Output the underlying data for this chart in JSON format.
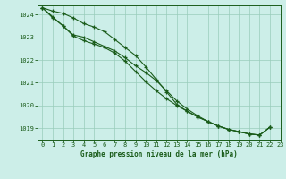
{
  "title": "Graphe pression niveau de la mer (hPa)",
  "background_color": "#cceee8",
  "grid_color": "#99ccbb",
  "line_color": "#1a5c1a",
  "xlim": [
    -0.5,
    23
  ],
  "ylim": [
    1018.5,
    1024.4
  ],
  "yticks": [
    1019,
    1020,
    1021,
    1022,
    1023,
    1024
  ],
  "xticks": [
    0,
    1,
    2,
    3,
    4,
    5,
    6,
    7,
    8,
    9,
    10,
    11,
    12,
    13,
    14,
    15,
    16,
    17,
    18,
    19,
    20,
    21,
    22,
    23
  ],
  "x_hours": [
    0,
    1,
    2,
    3,
    4,
    5,
    6,
    7,
    8,
    9,
    10,
    11,
    12,
    13,
    14,
    15,
    16,
    17,
    18,
    19,
    20,
    21,
    22
  ],
  "series": [
    [
      1024.3,
      1023.9,
      1023.5,
      1023.1,
      1023.0,
      1022.8,
      1022.6,
      1022.4,
      1022.1,
      1021.75,
      1021.45,
      1021.1,
      1020.65,
      1020.2,
      1019.85,
      1019.55,
      1019.3,
      1019.1,
      1018.95,
      1018.85,
      1018.75,
      1018.7,
      1019.05
    ],
    [
      1024.3,
      1023.85,
      1023.5,
      1023.05,
      1022.85,
      1022.7,
      1022.55,
      1022.3,
      1021.95,
      1021.5,
      1021.05,
      1020.65,
      1020.3,
      1020.0,
      1019.75,
      1019.5,
      1019.3,
      1019.1,
      1018.95,
      1018.85,
      1018.75,
      1018.7,
      1019.05
    ],
    [
      1024.3,
      1024.15,
      1024.05,
      1023.85,
      1023.6,
      1023.45,
      1023.25,
      1022.9,
      1022.55,
      1022.2,
      1021.7,
      1021.15,
      1020.6,
      1020.05,
      1019.75,
      1019.5,
      1019.3,
      1019.1,
      1018.95,
      1018.85,
      1018.75,
      1018.7,
      1019.05
    ]
  ]
}
